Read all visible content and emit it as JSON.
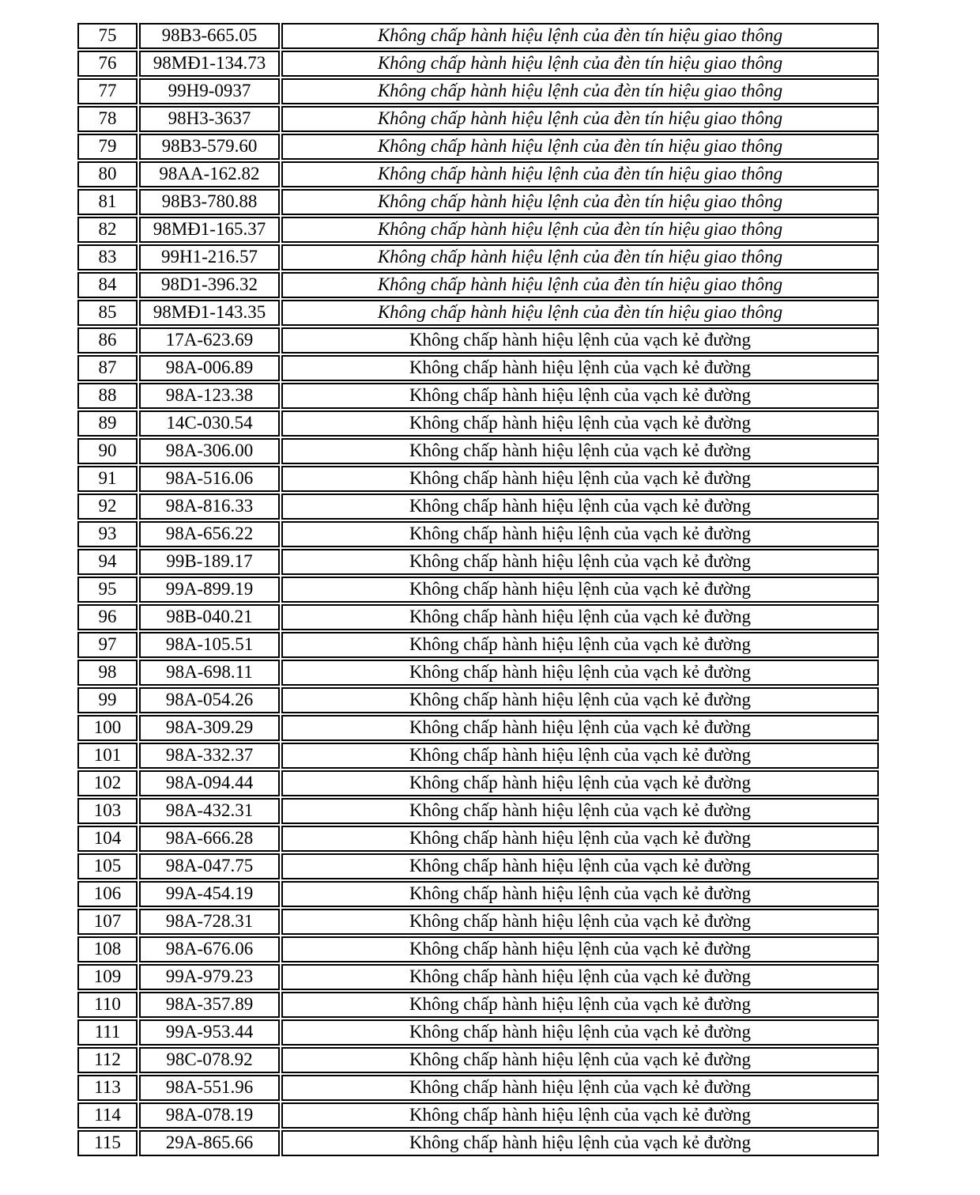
{
  "page": {
    "background": "#ffffff",
    "border_color": "#000000",
    "text_color": "#000000"
  },
  "table": {
    "columns": [
      "stt",
      "plate",
      "violation"
    ],
    "violation_texts": {
      "den_tin_hieu": "Không chấp hành hiệu lệnh của đèn tín hiệu giao thông",
      "vach_ke_duong": "Không chấp hành hiệu lệnh của vạch kẻ đường"
    },
    "rows": [
      {
        "no": "75",
        "plate": "98B3-665.05",
        "violation": "Không chấp hành hiệu lệnh của đèn tín hiệu giao thông",
        "style": "italic"
      },
      {
        "no": "76",
        "plate": "98MĐ1-134.73",
        "violation": "Không chấp hành hiệu lệnh của đèn tín hiệu giao thông",
        "style": "italic"
      },
      {
        "no": "77",
        "plate": "99H9-0937",
        "violation": "Không chấp hành hiệu lệnh của đèn tín hiệu giao thông",
        "style": "italic"
      },
      {
        "no": "78",
        "plate": "98H3-3637",
        "violation": "Không chấp hành hiệu lệnh của đèn tín hiệu giao thông",
        "style": "italic"
      },
      {
        "no": "79",
        "plate": "98B3-579.60",
        "violation": "Không chấp hành hiệu lệnh của đèn tín hiệu giao thông",
        "style": "italic"
      },
      {
        "no": "80",
        "plate": "98AA-162.82",
        "violation": "Không chấp hành hiệu lệnh của đèn tín hiệu giao thông",
        "style": "italic"
      },
      {
        "no": "81",
        "plate": "98B3-780.88",
        "violation": "Không chấp hành hiệu lệnh của đèn tín hiệu giao thông",
        "style": "italic"
      },
      {
        "no": "82",
        "plate": "98MĐ1-165.37",
        "violation": "Không chấp hành hiệu lệnh của đèn tín hiệu giao thông",
        "style": "italic"
      },
      {
        "no": "83",
        "plate": "99H1-216.57",
        "violation": "Không chấp hành hiệu lệnh của đèn tín hiệu giao thông",
        "style": "italic"
      },
      {
        "no": "84",
        "plate": "98D1-396.32",
        "violation": "Không chấp hành hiệu lệnh của đèn tín hiệu giao thông",
        "style": "italic"
      },
      {
        "no": "85",
        "plate": "98MĐ1-143.35",
        "violation": "Không chấp hành hiệu lệnh của đèn tín hiệu giao thông",
        "style": "italic"
      },
      {
        "no": "86",
        "plate": "17A-623.69",
        "violation": "Không chấp hành hiệu lệnh của vạch kẻ đường",
        "style": "normal"
      },
      {
        "no": "87",
        "plate": "98A-006.89",
        "violation": "Không chấp hành hiệu lệnh của vạch kẻ đường",
        "style": "normal"
      },
      {
        "no": "88",
        "plate": "98A-123.38",
        "violation": "Không chấp hành hiệu lệnh của vạch kẻ đường",
        "style": "normal"
      },
      {
        "no": "89",
        "plate": "14C-030.54",
        "violation": "Không chấp hành hiệu lệnh của vạch kẻ đường",
        "style": "normal"
      },
      {
        "no": "90",
        "plate": "98A-306.00",
        "violation": "Không chấp hành hiệu lệnh của vạch kẻ đường",
        "style": "normal"
      },
      {
        "no": "91",
        "plate": "98A-516.06",
        "violation": "Không chấp hành hiệu lệnh của vạch kẻ đường",
        "style": "normal"
      },
      {
        "no": "92",
        "plate": "98A-816.33",
        "violation": "Không chấp hành hiệu lệnh của vạch kẻ đường",
        "style": "normal"
      },
      {
        "no": "93",
        "plate": "98A-656.22",
        "violation": "Không chấp hành hiệu lệnh của vạch kẻ đường",
        "style": "normal"
      },
      {
        "no": "94",
        "plate": "99B-189.17",
        "violation": "Không chấp hành hiệu lệnh của vạch kẻ đường",
        "style": "normal"
      },
      {
        "no": "95",
        "plate": "99A-899.19",
        "violation": "Không chấp hành hiệu lệnh của vạch kẻ đường",
        "style": "normal"
      },
      {
        "no": "96",
        "plate": "98B-040.21",
        "violation": "Không chấp hành hiệu lệnh của vạch kẻ đường",
        "style": "normal"
      },
      {
        "no": "97",
        "plate": "98A-105.51",
        "violation": "Không chấp hành hiệu lệnh của vạch kẻ đường",
        "style": "normal"
      },
      {
        "no": "98",
        "plate": "98A-698.11",
        "violation": "Không chấp hành hiệu lệnh của vạch kẻ đường",
        "style": "normal"
      },
      {
        "no": "99",
        "plate": "98A-054.26",
        "violation": "Không chấp hành hiệu lệnh của vạch kẻ đường",
        "style": "normal"
      },
      {
        "no": "100",
        "plate": "98A-309.29",
        "violation": "Không chấp hành hiệu lệnh của vạch kẻ đường",
        "style": "normal"
      },
      {
        "no": "101",
        "plate": "98A-332.37",
        "violation": "Không chấp hành hiệu lệnh của vạch kẻ đường",
        "style": "normal"
      },
      {
        "no": "102",
        "plate": "98A-094.44",
        "violation": "Không chấp hành hiệu lệnh của vạch kẻ đường",
        "style": "normal"
      },
      {
        "no": "103",
        "plate": "98A-432.31",
        "violation": "Không chấp hành hiệu lệnh của vạch kẻ đường",
        "style": "normal"
      },
      {
        "no": "104",
        "plate": "98A-666.28",
        "violation": "Không chấp hành hiệu lệnh của vạch kẻ đường",
        "style": "normal"
      },
      {
        "no": "105",
        "plate": "98A-047.75",
        "violation": "Không chấp hành hiệu lệnh của vạch kẻ đường",
        "style": "normal"
      },
      {
        "no": "106",
        "plate": "99A-454.19",
        "violation": "Không chấp hành hiệu lệnh của vạch kẻ đường",
        "style": "normal"
      },
      {
        "no": "107",
        "plate": "98A-728.31",
        "violation": "Không chấp hành hiệu lệnh của vạch kẻ đường",
        "style": "normal"
      },
      {
        "no": "108",
        "plate": "98A-676.06",
        "violation": "Không chấp hành hiệu lệnh của vạch kẻ đường",
        "style": "normal"
      },
      {
        "no": "109",
        "plate": "99A-979.23",
        "violation": "Không chấp hành hiệu lệnh của vạch kẻ đường",
        "style": "normal"
      },
      {
        "no": "110",
        "plate": "98A-357.89",
        "violation": "Không chấp hành hiệu lệnh của vạch kẻ đường",
        "style": "normal"
      },
      {
        "no": "111",
        "plate": "99A-953.44",
        "violation": "Không chấp hành hiệu lệnh của vạch kẻ đường",
        "style": "normal"
      },
      {
        "no": "112",
        "plate": "98C-078.92",
        "violation": "Không chấp hành hiệu lệnh của vạch kẻ đường",
        "style": "normal"
      },
      {
        "no": "113",
        "plate": "98A-551.96",
        "violation": "Không chấp hành hiệu lệnh của vạch kẻ đường",
        "style": "normal"
      },
      {
        "no": "114",
        "plate": "98A-078.19",
        "violation": "Không chấp hành hiệu lệnh của vạch kẻ đường",
        "style": "normal"
      },
      {
        "no": "115",
        "plate": "29A-865.66",
        "violation": "Không chấp hành hiệu lệnh của vạch kẻ đường",
        "style": "normal"
      }
    ]
  }
}
